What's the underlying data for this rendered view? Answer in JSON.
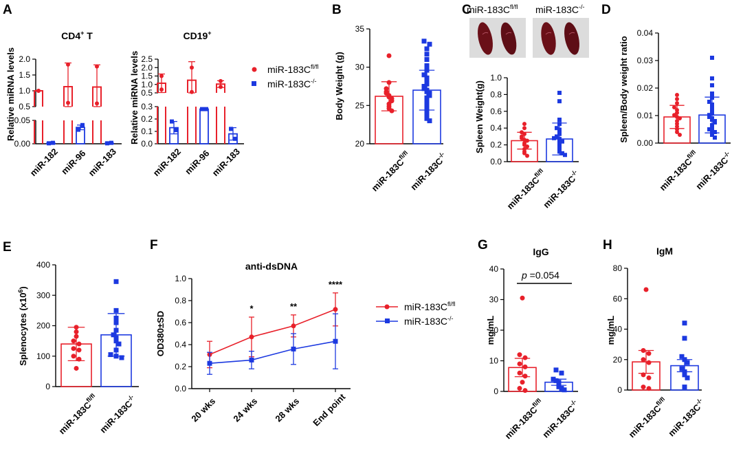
{
  "colors": {
    "ctrl": "#e8202a",
    "ko": "#1c39e0",
    "axis": "#000000"
  },
  "legend": {
    "ctrl": "miR-183C",
    "ctrl_sup": "fl/fl",
    "ko": "miR-183C",
    "ko_sup": "-/-"
  },
  "panels": {
    "A": {
      "label": "A",
      "title_cd4": "CD4",
      "title_cd4_sup": "+",
      "title_cd4_tail": " T",
      "title_cd19": "CD19",
      "title_cd19_sup": "+",
      "ylabel": "Relative miRNA levels"
    },
    "B": {
      "label": "B"
    },
    "C": {
      "label": "C",
      "photo_ctrl": "miR-183C",
      "photo_ctrl_sup": "fl/fl",
      "photo_ko": "miR-183C",
      "photo_ko_sup": "-/-"
    },
    "D": {
      "label": "D"
    },
    "E": {
      "label": "E",
      "ylabel_sup": "6",
      "ylabel_tail": ")"
    },
    "F": {
      "label": "F"
    },
    "G": {
      "label": "G",
      "p_italic": "p",
      "p_value": " =0.054"
    },
    "H": {
      "label": "H"
    }
  },
  "chart_data": [
    {
      "id": "A1",
      "type": "bar",
      "title": "CD4+ T",
      "ylabel": "Relative miRNA levels",
      "categories": [
        "miR-182",
        "miR-96",
        "miR-183"
      ],
      "broken_axis": {
        "lower": [
          0,
          0.05
        ],
        "upper": [
          0.5,
          2.0
        ]
      },
      "yticks_lower": [
        "0.00",
        "0.05"
      ],
      "yticks_upper": [
        "0.5",
        "1.0",
        "1.5",
        "2.0"
      ],
      "series": [
        {
          "name": "miR-183Cfl/fl",
          "values": [
            1.0,
            1.13,
            1.12
          ],
          "sd": [
            0.0,
            0.75,
            0.7
          ],
          "points": [
            [
              1.0,
              1.0
            ],
            [
              1.83,
              0.62
            ],
            [
              1.77,
              0.6
            ]
          ]
        },
        {
          "name": "miR-183C-/-",
          "values": [
            0.001,
            0.035,
            0.001
          ],
          "sd": [
            0.0,
            0.005,
            0.0
          ],
          "points": [
            [
              0.001,
              0.002
            ],
            [
              0.03,
              0.04
            ],
            [
              0.001,
              0.002
            ]
          ]
        }
      ]
    },
    {
      "id": "A2",
      "type": "bar",
      "title": "CD19+",
      "ylabel": "Relative miRNA levels",
      "categories": [
        "miR-182",
        "miR-96",
        "miR-183"
      ],
      "broken_axis": {
        "lower": [
          0,
          0.3
        ],
        "upper": [
          0.5,
          2.5
        ]
      },
      "yticks_lower": [
        "0.0",
        "0.1",
        "0.2",
        "0.3"
      ],
      "yticks_upper": [
        "0.5",
        "1.0",
        "1.5",
        "2.0",
        "2.5"
      ],
      "series": [
        {
          "name": "miR-183Cfl/fl",
          "values": [
            1.07,
            1.25,
            1.02
          ],
          "sd": [
            0.55,
            1.1,
            0.2
          ],
          "points": [
            [
              1.5,
              0.7
            ],
            [
              2.0,
              0.55
            ],
            [
              1.2,
              0.85
            ]
          ]
        },
        {
          "name": "miR-183C-/-",
          "values": [
            0.13,
            0.28,
            0.08
          ],
          "sd": [
            0.05,
            0.01,
            0.05
          ],
          "points": [
            [
              0.18,
              0.11
            ],
            [
              0.28,
              0.28
            ],
            [
              0.12,
              0.04
            ]
          ]
        }
      ]
    },
    {
      "id": "B",
      "type": "scatter_bar",
      "ylabel": "Body Weight (g)",
      "ylim": [
        20,
        35
      ],
      "yticks": [
        "20",
        "25",
        "30",
        "35"
      ],
      "categories": [
        "miR-183C",
        "miR-183C"
      ],
      "cat_sup": [
        "fl/fl",
        "-/-"
      ],
      "means": [
        26.2,
        27.0
      ],
      "sd": [
        1.9,
        2.6
      ],
      "points": [
        [
          31.5,
          28.0,
          27.2,
          26.8,
          26.6,
          26.3,
          26.1,
          25.9,
          25.6,
          25.2,
          24.9,
          24.6,
          24.3
        ],
        [
          33.4,
          33.0,
          32.4,
          31.7,
          31.0,
          30.2,
          29.6,
          29.0,
          28.6,
          28.2,
          27.8,
          27.5,
          27.2,
          27.0,
          26.8,
          26.6,
          26.3,
          26.0,
          25.7,
          25.4,
          25.0,
          24.6,
          24.2,
          23.8,
          23.3,
          23.0
        ]
      ]
    },
    {
      "id": "C",
      "type": "scatter_bar",
      "ylabel": "Spleen Weight(g)",
      "ylim": [
        0,
        1.0
      ],
      "yticks": [
        "0.0",
        "0.2",
        "0.4",
        "0.6",
        "0.8",
        "1.0"
      ],
      "categories": [
        "miR-183C",
        "miR-183C"
      ],
      "cat_sup": [
        "fl/fl",
        "-/-"
      ],
      "means": [
        0.25,
        0.27
      ],
      "sd": [
        0.1,
        0.19
      ],
      "points": [
        [
          0.45,
          0.4,
          0.35,
          0.33,
          0.3,
          0.28,
          0.26,
          0.25,
          0.22,
          0.2,
          0.18,
          0.15,
          0.12,
          0.1,
          0.07
        ],
        [
          0.82,
          0.72,
          0.5,
          0.45,
          0.4,
          0.38,
          0.35,
          0.33,
          0.3,
          0.28,
          0.27,
          0.25,
          0.24,
          0.22,
          0.2,
          0.18,
          0.17,
          0.15,
          0.13,
          0.12,
          0.1,
          0.08
        ]
      ]
    },
    {
      "id": "D",
      "type": "scatter_bar",
      "ylabel": "Spleen/Body weight ratio",
      "ylim": [
        0,
        0.04
      ],
      "yticks": [
        "0.00",
        "0.01",
        "0.02",
        "0.03",
        "0.04"
      ],
      "categories": [
        "miR-183C",
        "miR-183C"
      ],
      "cat_sup": [
        "fl/fl",
        "-/-"
      ],
      "means": [
        0.0095,
        0.0102
      ],
      "sd": [
        0.0042,
        0.0065
      ],
      "points": [
        [
          0.0175,
          0.016,
          0.0145,
          0.013,
          0.012,
          0.011,
          0.0102,
          0.0095,
          0.009,
          0.008,
          0.007,
          0.006,
          0.005,
          0.004,
          0.003
        ],
        [
          0.031,
          0.0235,
          0.021,
          0.018,
          0.0165,
          0.015,
          0.014,
          0.0132,
          0.012,
          0.011,
          0.0102,
          0.0095,
          0.009,
          0.0085,
          0.008,
          0.0075,
          0.0065,
          0.006,
          0.005,
          0.0045,
          0.004,
          0.003,
          0.002
        ]
      ]
    },
    {
      "id": "E",
      "type": "scatter_bar",
      "ylabel": "Splenocytes (x10",
      "ylim": [
        0,
        400
      ],
      "yticks": [
        "0",
        "100",
        "200",
        "300",
        "400"
      ],
      "categories": [
        "miR-183C",
        "miR-183C"
      ],
      "cat_sup": [
        "fl/fl",
        "-/-"
      ],
      "means": [
        140,
        170
      ],
      "sd": [
        55,
        70
      ],
      "points": [
        [
          195,
          180,
          165,
          150,
          140,
          125,
          120,
          100,
          90,
          60
        ],
        [
          345,
          250,
          225,
          210,
          185,
          170,
          160,
          150,
          140,
          120,
          105,
          100,
          95
        ]
      ]
    },
    {
      "id": "F",
      "type": "line",
      "title": "anti-dsDNA",
      "ylabel": "OD380±SD",
      "ylim": [
        0,
        1.0
      ],
      "yticks": [
        "0.0",
        "0.2",
        "0.4",
        "0.6",
        "0.8",
        "1.0"
      ],
      "categories": [
        "20 wks",
        "24 wks",
        "28 wks",
        "End point"
      ],
      "series": [
        {
          "name": "miR-183Cfl/fl",
          "values": [
            0.31,
            0.47,
            0.57,
            0.72
          ],
          "sd": [
            0.12,
            0.18,
            0.1,
            0.15
          ]
        },
        {
          "name": "miR-183C-/-",
          "values": [
            0.23,
            0.26,
            0.36,
            0.43
          ],
          "sd": [
            0.1,
            0.08,
            0.14,
            0.25
          ]
        }
      ],
      "significance": [
        "",
        "*",
        "**",
        "****"
      ]
    },
    {
      "id": "G",
      "type": "scatter_bar",
      "title": "IgG",
      "ylabel": "mg/mL",
      "ylim": [
        0,
        40
      ],
      "yticks": [
        "0",
        "10",
        "20",
        "30",
        "40"
      ],
      "categories": [
        "miR-183C",
        "miR-183C"
      ],
      "cat_sup": [
        "fl/fl",
        "-/-"
      ],
      "means": [
        7.8,
        3.0
      ],
      "sd": [
        3.0,
        1.0
      ],
      "points": [
        [
          30.5,
          12,
          11,
          9,
          8,
          6,
          5,
          3,
          1,
          0.3
        ],
        [
          7,
          6,
          4,
          3.5,
          3,
          2.5,
          2,
          1.5,
          1,
          0.5
        ]
      ]
    },
    {
      "id": "H",
      "type": "scatter_bar",
      "title": "IgM",
      "ylabel": "mg/mL",
      "ylim": [
        0,
        80
      ],
      "yticks": [
        "0",
        "20",
        "40",
        "60",
        "80"
      ],
      "categories": [
        "miR-183C",
        "miR-183C"
      ],
      "cat_sup": [
        "fl/fl",
        "-/-"
      ],
      "means": [
        18.5,
        16
      ],
      "sd": [
        7.5,
        4
      ],
      "points": [
        [
          66,
          26,
          24,
          20,
          18,
          10,
          8,
          2,
          1
        ],
        [
          44,
          34,
          22,
          20,
          18,
          14,
          12,
          10,
          8,
          2
        ]
      ]
    }
  ]
}
